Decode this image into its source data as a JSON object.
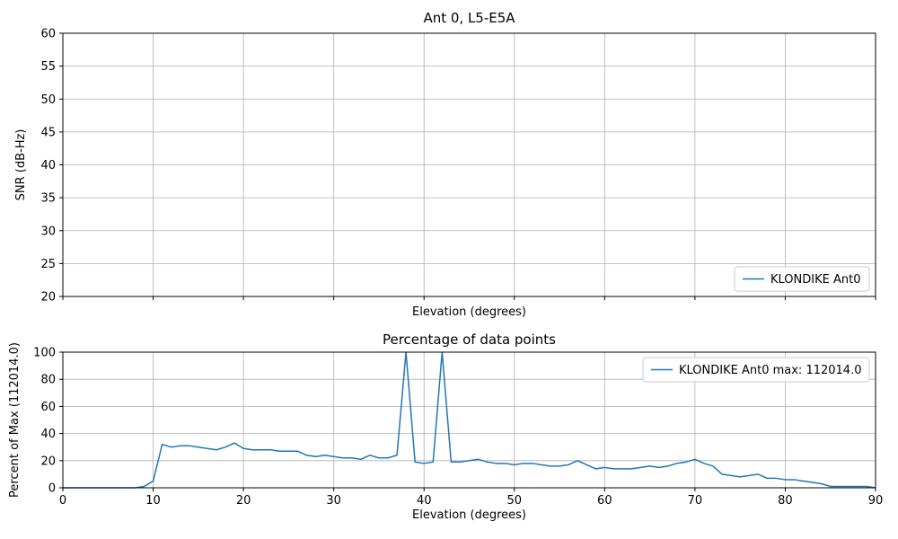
{
  "figure": {
    "background": "#ffffff"
  },
  "colors": {
    "line": "#1f77b4",
    "grid": "#b0b0b0",
    "axis": "#000000",
    "legend_border": "#cccccc"
  },
  "chart_data": [
    {
      "type": "line",
      "title": "Ant 0, L5-E5A",
      "xlabel": "Elevation (degrees)",
      "ylabel": "SNR (dB-Hz)",
      "xlim": [
        0,
        90
      ],
      "ylim": [
        20,
        60
      ],
      "xticks": [
        0,
        10,
        20,
        30,
        40,
        50,
        60,
        70,
        80,
        90
      ],
      "xtick_labels_visible": false,
      "yticks": [
        20,
        25,
        30,
        35,
        40,
        45,
        50,
        55,
        60
      ],
      "grid": true,
      "legend": {
        "position": "lower right",
        "entries": [
          {
            "label": "KLONDIKE Ant0",
            "color": "#1f77b4"
          }
        ]
      },
      "series": []
    },
    {
      "type": "line",
      "title": "Percentage of data points",
      "xlabel": "Elevation (degrees)",
      "ylabel": "Percent of Max (112014.0)",
      "max_value": "112014.0",
      "xlim": [
        0,
        90
      ],
      "ylim": [
        0,
        100
      ],
      "xticks": [
        0,
        10,
        20,
        30,
        40,
        50,
        60,
        70,
        80,
        90
      ],
      "xtick_labels_visible": true,
      "yticks": [
        0,
        20,
        40,
        60,
        80,
        100
      ],
      "grid": true,
      "legend": {
        "position": "upper right",
        "entries": [
          {
            "label": "KLONDIKE Ant0 max: 112014.0",
            "color": "#1f77b4"
          }
        ]
      },
      "series": [
        {
          "name": "KLONDIKE Ant0",
          "color": "#1f77b4",
          "x": [
            0,
            1,
            2,
            3,
            4,
            5,
            6,
            7,
            8,
            9,
            10,
            11,
            12,
            13,
            14,
            15,
            16,
            17,
            18,
            19,
            20,
            21,
            22,
            23,
            24,
            25,
            26,
            27,
            28,
            29,
            30,
            31,
            32,
            33,
            34,
            35,
            36,
            37,
            38,
            39,
            40,
            41,
            42,
            43,
            44,
            45,
            46,
            47,
            48,
            49,
            50,
            51,
            52,
            53,
            54,
            55,
            56,
            57,
            58,
            59,
            60,
            61,
            62,
            63,
            64,
            65,
            66,
            67,
            68,
            69,
            70,
            71,
            72,
            73,
            74,
            75,
            76,
            77,
            78,
            79,
            80,
            81,
            82,
            83,
            84,
            85,
            86,
            87,
            88,
            89,
            90
          ],
          "y": [
            0,
            0,
            0,
            0,
            0,
            0,
            0,
            0,
            0,
            1,
            5,
            32,
            30,
            31,
            31,
            30,
            29,
            28,
            30,
            33,
            29,
            28,
            28,
            28,
            27,
            27,
            27,
            24,
            23,
            24,
            23,
            22,
            22,
            21,
            24,
            22,
            22,
            24,
            100,
            19,
            18,
            19,
            100,
            19,
            19,
            20,
            21,
            19,
            18,
            18,
            17,
            18,
            18,
            17,
            16,
            16,
            17,
            20,
            17,
            14,
            15,
            14,
            14,
            14,
            15,
            16,
            15,
            16,
            18,
            19,
            21,
            18,
            16,
            10,
            9,
            8,
            9,
            10,
            7,
            7,
            6,
            6,
            5,
            4,
            3,
            1,
            1,
            1,
            1,
            1,
            0
          ]
        }
      ]
    }
  ]
}
